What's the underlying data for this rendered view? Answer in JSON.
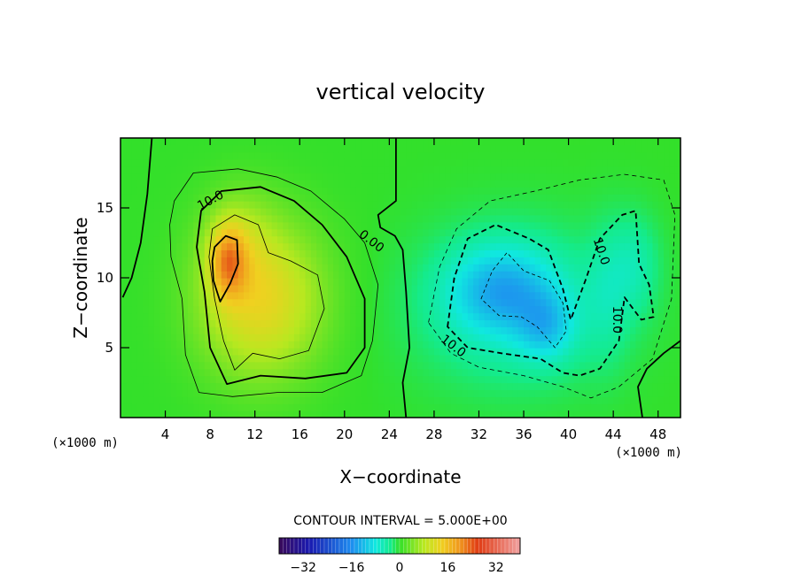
{
  "chart_data": {
    "type": "heatmap",
    "title": "vertical velocity",
    "xlabel": "X−coordinate",
    "ylabel": "Z−coordinate",
    "x_unit": "(×1000 m)",
    "z_unit": "(×1000 m)",
    "xlim": [
      0,
      50
    ],
    "ylim": [
      0,
      20
    ],
    "x_ticks": [
      4,
      8,
      12,
      16,
      20,
      24,
      28,
      32,
      36,
      40,
      44,
      48
    ],
    "y_ticks": [
      5,
      10,
      15
    ],
    "contour_interval_text": "CONTOUR INTERVAL = 5.000E+00",
    "contour_labels": [
      "10.0",
      "0.00",
      "10.0",
      "10.0",
      "10.0"
    ],
    "colorbar": {
      "range": [
        -40,
        40
      ],
      "ticks": [
        -32,
        -16,
        0,
        16,
        32
      ]
    },
    "features": [
      {
        "name": "updraft",
        "x": 9.5,
        "z": 11,
        "peak": 25
      },
      {
        "name": "downdraft-core",
        "x": 34,
        "z": 9,
        "peak": -15
      },
      {
        "name": "downdraft-lower",
        "x": 38,
        "z": 6.5,
        "peak": -13
      }
    ]
  }
}
